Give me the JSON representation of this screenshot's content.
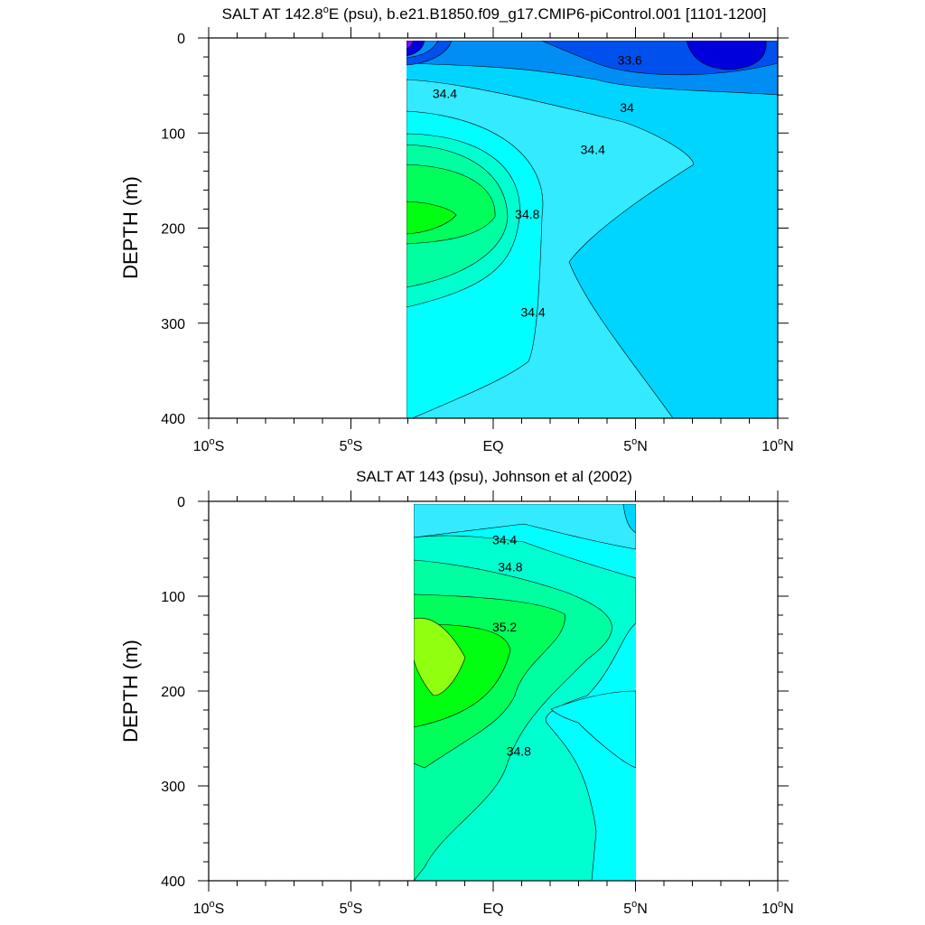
{
  "chart_data": [
    {
      "type": "contour",
      "title": "SALT AT 142.8°E (psu), b.e21.B1850.f09_g17.CMIP6-piControl.001 [1101-1200]",
      "title_parts": {
        "pre": "SALT AT 142.8",
        "sup": "o",
        "post": "E (psu), b.e21.B1850.f09_g17.CMIP6-piControl.001 [1101-1200]"
      },
      "ylabel": "DEPTH (m)",
      "xlim": [
        -10,
        10
      ],
      "ylim": [
        0,
        400
      ],
      "y_inverted": true,
      "xticks": [
        -10,
        -5,
        0,
        5,
        10
      ],
      "yticks": [
        0,
        100,
        200,
        300,
        400
      ],
      "data_extent_lat": [
        -3.1,
        10
      ],
      "data_extent_depth": [
        5,
        400
      ],
      "contour_labels": [
        {
          "text": "33.6",
          "lat": 4.8,
          "depth": 28
        },
        {
          "text": "34.4",
          "lat": -1.7,
          "depth": 63
        },
        {
          "text": "34",
          "lat": 4.7,
          "depth": 78
        },
        {
          "text": "34.4",
          "lat": 3.5,
          "depth": 122
        },
        {
          "text": "34.8",
          "lat": 1.2,
          "depth": 190
        },
        {
          "text": "34.4",
          "lat": 1.4,
          "depth": 293
        }
      ],
      "colors": {
        "c1": "#0000dd",
        "c2": "#0050ee",
        "c3": "#008ef5",
        "c4": "#00d5ff",
        "c5": "#33eaff",
        "c6": "#00ffff",
        "c7": "#00ffd0",
        "c8": "#00ffa0",
        "c9": "#00ff5a",
        "c10": "#00ff10"
      }
    },
    {
      "type": "contour",
      "title": "SALT AT 143 (psu), Johnson et al (2002)",
      "ylabel": "DEPTH (m)",
      "xlim": [
        -10,
        10
      ],
      "ylim": [
        0,
        400
      ],
      "y_inverted": true,
      "xticks": [
        -10,
        -5,
        0,
        5,
        10
      ],
      "yticks": [
        0,
        100,
        200,
        300,
        400
      ],
      "data_extent_lat": [
        -2.8,
        5
      ],
      "data_extent_depth": [
        5,
        400
      ],
      "contour_labels": [
        {
          "text": "34.4",
          "lat": 0.4,
          "depth": 45
        },
        {
          "text": "34.8",
          "lat": 0.6,
          "depth": 74
        },
        {
          "text": "35.2",
          "lat": 0.4,
          "depth": 137
        },
        {
          "text": "34.8",
          "lat": 0.9,
          "depth": 268
        }
      ],
      "colors": {
        "c1": "#33eaff",
        "c2": "#00ffff",
        "c3": "#00ffd0",
        "c4": "#00ffa0",
        "c5": "#00ff5a",
        "c6": "#00ff10",
        "c7": "#90ff10",
        "c8": "#00d5ff"
      }
    }
  ]
}
